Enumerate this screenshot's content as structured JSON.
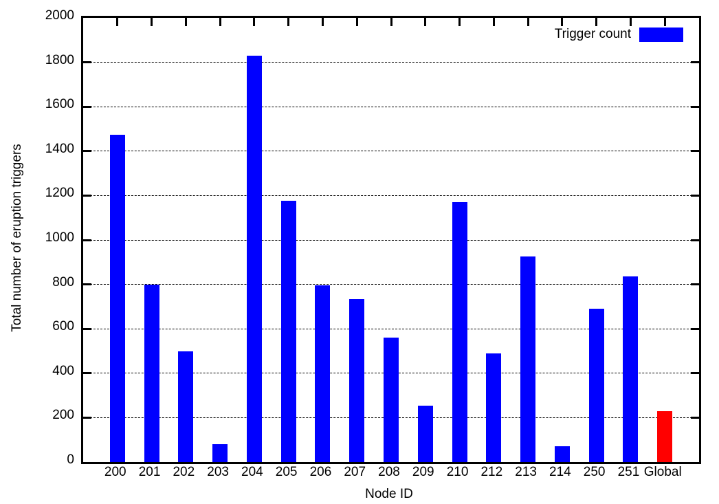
{
  "chart_data": {
    "type": "bar",
    "title": "",
    "xlabel": "Node ID",
    "ylabel": "Total number of eruption triggers",
    "legend": {
      "label": "Trigger count",
      "swatch_color": "#0000ff",
      "position": "top-right-inside"
    },
    "categories": [
      "200",
      "201",
      "202",
      "203",
      "204",
      "205",
      "206",
      "207",
      "208",
      "209",
      "210",
      "212",
      "213",
      "214",
      "250",
      "251",
      "Global"
    ],
    "values": [
      1475,
      800,
      497,
      80,
      1830,
      1175,
      795,
      733,
      560,
      255,
      1170,
      490,
      927,
      72,
      690,
      837,
      228
    ],
    "bar_colors": [
      "#0000ff",
      "#0000ff",
      "#0000ff",
      "#0000ff",
      "#0000ff",
      "#0000ff",
      "#0000ff",
      "#0000ff",
      "#0000ff",
      "#0000ff",
      "#0000ff",
      "#0000ff",
      "#0000ff",
      "#0000ff",
      "#0000ff",
      "#0000ff",
      "#ff0000"
    ],
    "ylim": [
      0,
      2000
    ],
    "ytick_step": 200,
    "grid": "horizontal-dashed",
    "axis_color": "#000000",
    "background_color": "#ffffff"
  }
}
